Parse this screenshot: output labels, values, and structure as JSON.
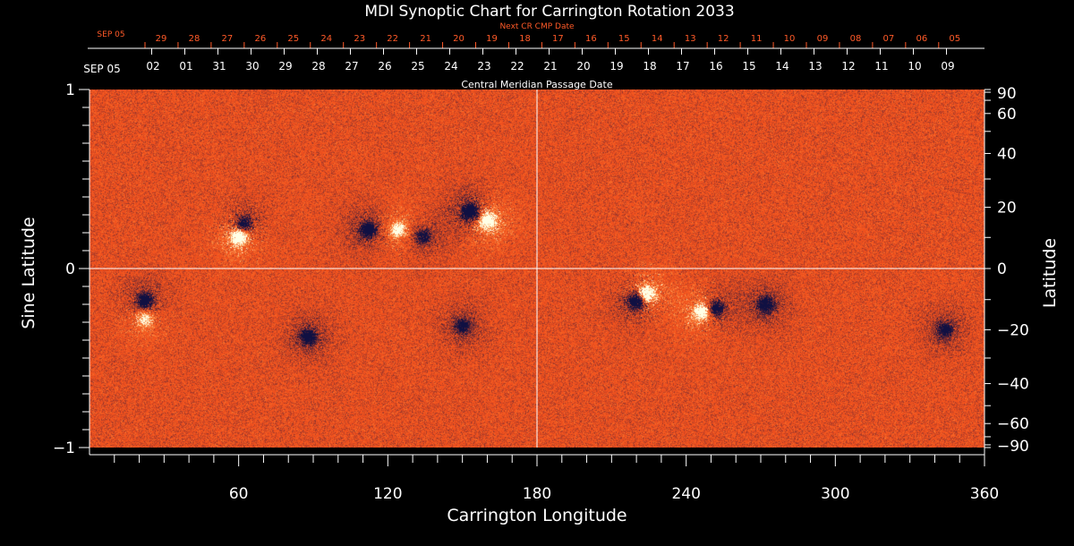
{
  "chart_data": {
    "type": "heatmap",
    "title": "MDI Synoptic Chart for Carrington Rotation 2033",
    "xlabel": "Carrington Longitude",
    "ylabel_left": "Sine Latitude",
    "ylabel_right": "Latitude",
    "xlim": [
      0,
      360
    ],
    "ylim_sine": [
      -1,
      1
    ],
    "x_ticks": [
      60,
      120,
      180,
      240,
      300,
      360
    ],
    "y_ticks_left": [
      {
        "value": 1,
        "label": "1"
      },
      {
        "value": 0,
        "label": "0"
      },
      {
        "value": -1,
        "label": "−1"
      }
    ],
    "y_ticks_right": [
      {
        "deg": 90,
        "label": "90"
      },
      {
        "deg": 60,
        "label": "60"
      },
      {
        "deg": 40,
        "label": "40"
      },
      {
        "deg": 20,
        "label": "20"
      },
      {
        "deg": 0,
        "label": "0"
      },
      {
        "deg": -20,
        "label": "−20"
      },
      {
        "deg": -40,
        "label": "−40"
      },
      {
        "deg": -60,
        "label": "−60"
      },
      {
        "deg": -90,
        "label": "−90"
      }
    ],
    "cmp_axis": {
      "title": "Central Meridian Passage Date",
      "start_label": "SEP 05",
      "dates": [
        "02",
        "01",
        "31",
        "30",
        "29",
        "28",
        "27",
        "26",
        "25",
        "24",
        "23",
        "22",
        "21",
        "20",
        "19",
        "18",
        "17",
        "16",
        "15",
        "14",
        "13",
        "12",
        "11",
        "10",
        "09"
      ]
    },
    "next_cmp_axis": {
      "title": "Next CR CMP Date",
      "start_label": "SEP 05",
      "dates": [
        "29",
        "28",
        "27",
        "26",
        "25",
        "24",
        "23",
        "22",
        "21",
        "20",
        "19",
        "18",
        "17",
        "16",
        "15",
        "14",
        "13",
        "12",
        "11",
        "10",
        "09",
        "08",
        "07",
        "06",
        "05"
      ]
    },
    "crosshair": {
      "longitude": 180,
      "sine_latitude": 0
    },
    "magnetic_regions": [
      {
        "lon": 60,
        "sinlat": 0.18,
        "polarity": "positive",
        "strength": 1.0
      },
      {
        "lon": 62,
        "sinlat": 0.25,
        "polarity": "negative",
        "strength": 0.8
      },
      {
        "lon": 22,
        "sinlat": -0.18,
        "polarity": "negative",
        "strength": 0.8
      },
      {
        "lon": 22,
        "sinlat": -0.28,
        "polarity": "positive",
        "strength": 0.6
      },
      {
        "lon": 88,
        "sinlat": -0.38,
        "polarity": "negative",
        "strength": 0.7
      },
      {
        "lon": 112,
        "sinlat": 0.22,
        "polarity": "negative",
        "strength": 0.8
      },
      {
        "lon": 124,
        "sinlat": 0.22,
        "polarity": "positive",
        "strength": 0.7
      },
      {
        "lon": 134,
        "sinlat": 0.18,
        "polarity": "negative",
        "strength": 0.6
      },
      {
        "lon": 153,
        "sinlat": 0.32,
        "polarity": "negative",
        "strength": 1.0
      },
      {
        "lon": 160,
        "sinlat": 0.27,
        "polarity": "positive",
        "strength": 1.0
      },
      {
        "lon": 150,
        "sinlat": -0.32,
        "polarity": "negative",
        "strength": 0.6
      },
      {
        "lon": 220,
        "sinlat": -0.18,
        "polarity": "negative",
        "strength": 1.0
      },
      {
        "lon": 224,
        "sinlat": -0.14,
        "polarity": "positive",
        "strength": 1.0
      },
      {
        "lon": 246,
        "sinlat": -0.24,
        "polarity": "positive",
        "strength": 0.9
      },
      {
        "lon": 252,
        "sinlat": -0.22,
        "polarity": "negative",
        "strength": 0.8
      },
      {
        "lon": 272,
        "sinlat": -0.2,
        "polarity": "negative",
        "strength": 0.7
      },
      {
        "lon": 344,
        "sinlat": -0.34,
        "polarity": "negative",
        "strength": 0.6
      }
    ],
    "colors": {
      "background": "#000000",
      "field_base": "#f05a1e",
      "positive": "#fff6c8",
      "negative": "#101042",
      "orange_text": "#ff5a28",
      "axis": "#ffffff"
    }
  }
}
